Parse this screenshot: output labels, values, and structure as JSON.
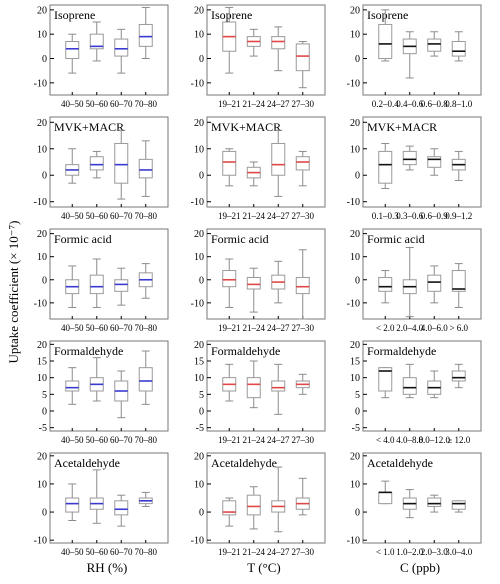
{
  "figure": {
    "ylabel": "Uptake coefficient (× 10⁻⁷)",
    "column_xlabels": [
      "RH (%)",
      "T (°C)",
      "C (ppb)"
    ],
    "column_colors": [
      "#3a3ad0",
      "#e04848",
      "#111111"
    ],
    "whisker_color": "#8c8c8c",
    "frame_color": "#777777"
  },
  "chart_data": [
    {
      "type": "box",
      "title": "Isoprene",
      "xlabel": "RH (%)",
      "ylabel": "Uptake coefficient (× 10⁻⁷)",
      "ylim": [
        -15,
        22
      ],
      "yticks": [
        -10,
        0,
        10,
        20
      ],
      "categories": [
        "40–50",
        "50–60",
        "60–70",
        "70–80"
      ],
      "boxes": [
        {
          "whislo": -6,
          "q1": 0,
          "med": 4,
          "q3": 7,
          "whishi": 10
        },
        {
          "whislo": -1,
          "q1": 4,
          "med": 5,
          "q3": 10,
          "whishi": 15
        },
        {
          "whislo": -6,
          "q1": 1,
          "med": 4,
          "q3": 8,
          "whishi": 12
        },
        {
          "whislo": 0,
          "q1": 5,
          "med": 9,
          "q3": 14,
          "whishi": 21
        }
      ]
    },
    {
      "type": "box",
      "title": "Isoprene",
      "xlabel": "T (°C)",
      "ylabel": "Uptake coefficient (× 10⁻⁷)",
      "ylim": [
        -15,
        22
      ],
      "yticks": [
        -10,
        0,
        10,
        20
      ],
      "categories": [
        "19–21",
        "21–24",
        "24–27",
        "27–30"
      ],
      "boxes": [
        {
          "whislo": -6,
          "q1": 3,
          "med": 9,
          "q3": 15,
          "whishi": 21
        },
        {
          "whislo": 1,
          "q1": 5,
          "med": 7,
          "q3": 9,
          "whishi": 12
        },
        {
          "whislo": -5,
          "q1": 4,
          "med": 7,
          "q3": 9,
          "whishi": 13
        },
        {
          "whislo": -12,
          "q1": -5,
          "med": 1,
          "q3": 6,
          "whishi": 7
        }
      ]
    },
    {
      "type": "box",
      "title": "Isoprene",
      "xlabel": "C (ppb)",
      "ylabel": "Uptake coefficient (× 10⁻⁷)",
      "ylim": [
        -15,
        22
      ],
      "yticks": [
        -10,
        0,
        10,
        20
      ],
      "categories": [
        "0.2–0.4",
        "0.4–0.6",
        "0.6–0.8",
        "0.8–1.0"
      ],
      "boxes": [
        {
          "whislo": -1,
          "q1": 0,
          "med": 6,
          "q3": 14,
          "whishi": 20
        },
        {
          "whislo": -8,
          "q1": 2,
          "med": 5,
          "q3": 8,
          "whishi": 11
        },
        {
          "whislo": 1,
          "q1": 3,
          "med": 6,
          "q3": 8,
          "whishi": 11
        },
        {
          "whislo": -1,
          "q1": 1,
          "med": 3,
          "q3": 7,
          "whishi": 11
        }
      ]
    },
    {
      "type": "box",
      "title": "MVK+MACR",
      "xlabel": "RH (%)",
      "ylabel": "Uptake coefficient (× 10⁻⁷)",
      "ylim": [
        -12,
        22
      ],
      "yticks": [
        -10,
        0,
        10,
        20
      ],
      "categories": [
        "40–50",
        "50–60",
        "60–70",
        "70–80"
      ],
      "boxes": [
        {
          "whislo": -3,
          "q1": 0,
          "med": 2,
          "q3": 4,
          "whishi": 10
        },
        {
          "whislo": -1,
          "q1": 2,
          "med": 4,
          "q3": 7,
          "whishi": 9
        },
        {
          "whislo": -9,
          "q1": -3,
          "med": 4,
          "q3": 12,
          "whishi": 17
        },
        {
          "whislo": -8,
          "q1": -1,
          "med": 2,
          "q3": 6,
          "whishi": 13
        }
      ]
    },
    {
      "type": "box",
      "title": "MVK+MACR",
      "xlabel": "T (°C)",
      "ylabel": "Uptake coefficient (× 10⁻⁷)",
      "ylim": [
        -12,
        22
      ],
      "yticks": [
        -10,
        0,
        10,
        20
      ],
      "categories": [
        "19–21",
        "21–24",
        "24–27",
        "27–30"
      ],
      "boxes": [
        {
          "whislo": -4,
          "q1": 0,
          "med": 5,
          "q3": 9,
          "whishi": 10
        },
        {
          "whislo": -4,
          "q1": -1,
          "med": 1,
          "q3": 3,
          "whishi": 5
        },
        {
          "whislo": -8,
          "q1": 0,
          "med": 4,
          "q3": 12,
          "whishi": 17
        },
        {
          "whislo": -4,
          "q1": 2,
          "med": 5,
          "q3": 7,
          "whishi": 9
        }
      ]
    },
    {
      "type": "box",
      "title": "MVK+MACR",
      "xlabel": "C (ppb)",
      "ylabel": "Uptake coefficient (× 10⁻⁷)",
      "ylim": [
        -12,
        22
      ],
      "yticks": [
        -10,
        0,
        10,
        20
      ],
      "categories": [
        "0.1–0.3",
        "0.3–0.6",
        "0.6–0.9",
        "0.9–1.2"
      ],
      "boxes": [
        {
          "whislo": -5,
          "q1": -3,
          "med": 4,
          "q3": 9,
          "whishi": 12
        },
        {
          "whislo": 2,
          "q1": 4,
          "med": 6,
          "q3": 9,
          "whishi": 11
        },
        {
          "whislo": 0,
          "q1": 3,
          "med": 6,
          "q3": 7,
          "whishi": 10
        },
        {
          "whislo": -2,
          "q1": 2,
          "med": 4,
          "q3": 6,
          "whishi": 9
        }
      ]
    },
    {
      "type": "box",
      "title": "Formic acid",
      "xlabel": "RH (%)",
      "ylabel": "Uptake coefficient (× 10⁻⁷)",
      "ylim": [
        -17,
        22
      ],
      "yticks": [
        -10,
        0,
        10,
        20
      ],
      "categories": [
        "40–50",
        "50–60",
        "60–70",
        "70–80"
      ],
      "boxes": [
        {
          "whislo": -12,
          "q1": -6,
          "med": -3,
          "q3": 0,
          "whishi": 6
        },
        {
          "whislo": -12,
          "q1": -6,
          "med": -3,
          "q3": 2,
          "whishi": 9
        },
        {
          "whislo": -11,
          "q1": -5,
          "med": -2,
          "q3": 0,
          "whishi": 5
        },
        {
          "whislo": -8,
          "q1": -3,
          "med": 0,
          "q3": 3,
          "whishi": 7
        }
      ]
    },
    {
      "type": "box",
      "title": "Formic acid",
      "xlabel": "T (°C)",
      "ylabel": "Uptake coefficient (× 10⁻⁷)",
      "ylim": [
        -17,
        22
      ],
      "yticks": [
        -10,
        0,
        10,
        20
      ],
      "categories": [
        "19–21",
        "21–24",
        "24–27",
        "27–30"
      ],
      "boxes": [
        {
          "whislo": -12,
          "q1": -3,
          "med": 0,
          "q3": 4,
          "whishi": 9
        },
        {
          "whislo": -14,
          "q1": -4,
          "med": -2,
          "q3": 1,
          "whishi": 5
        },
        {
          "whislo": -10,
          "q1": -4,
          "med": -1,
          "q3": 2,
          "whishi": 8
        },
        {
          "whislo": -17,
          "q1": -6,
          "med": -3,
          "q3": 1,
          "whishi": 13
        }
      ]
    },
    {
      "type": "box",
      "title": "Formic acid",
      "xlabel": "C (ppb)",
      "ylabel": "Uptake coefficient (× 10⁻⁷)",
      "ylim": [
        -17,
        22
      ],
      "yticks": [
        -10,
        0,
        10,
        20
      ],
      "categories": [
        "< 2.0",
        "2.0–4.0",
        "4.0–6.0",
        "> 6.0"
      ],
      "boxes": [
        {
          "whislo": -10,
          "q1": -5,
          "med": -3,
          "q3": 1,
          "whishi": 4
        },
        {
          "whislo": -16,
          "q1": -6,
          "med": -3,
          "q3": 0,
          "whishi": 14
        },
        {
          "whislo": -10,
          "q1": -5,
          "med": -1,
          "q3": 2,
          "whishi": 6
        },
        {
          "whislo": -12,
          "q1": -5,
          "med": -4,
          "q3": 4,
          "whishi": 7
        }
      ]
    },
    {
      "type": "box",
      "title": "Formaldehyde",
      "xlabel": "RH (%)",
      "ylabel": "Uptake coefficient (× 10⁻⁷)",
      "ylim": [
        -6,
        21
      ],
      "yticks": [
        -5,
        0,
        5,
        10,
        15,
        20
      ],
      "categories": [
        "40–50",
        "50–60",
        "60–70",
        "70–80"
      ],
      "boxes": [
        {
          "whislo": 2,
          "q1": 6,
          "med": 7,
          "q3": 9,
          "whishi": 13
        },
        {
          "whislo": 3,
          "q1": 6,
          "med": 8,
          "q3": 10,
          "whishi": 16
        },
        {
          "whislo": -2,
          "q1": 3,
          "med": 6,
          "q3": 9,
          "whishi": 12
        },
        {
          "whislo": 2,
          "q1": 6,
          "med": 9,
          "q3": 13,
          "whishi": 18
        }
      ]
    },
    {
      "type": "box",
      "title": "Formaldehyde",
      "xlabel": "T (°C)",
      "ylabel": "Uptake coefficient (× 10⁻⁷)",
      "ylim": [
        -6,
        21
      ],
      "yticks": [
        -5,
        0,
        5,
        10,
        15,
        20
      ],
      "categories": [
        "19–21",
        "21–24",
        "24–27",
        "27–30"
      ],
      "boxes": [
        {
          "whislo": 3,
          "q1": 6,
          "med": 8,
          "q3": 10,
          "whishi": 14
        },
        {
          "whislo": 1,
          "q1": 4,
          "med": 8,
          "q3": 10,
          "whishi": 15
        },
        {
          "whislo": -1,
          "q1": 6,
          "med": 7,
          "q3": 9,
          "whishi": 14
        },
        {
          "whislo": 5,
          "q1": 7,
          "med": 8,
          "q3": 9,
          "whishi": 11
        }
      ]
    },
    {
      "type": "box",
      "title": "Formaldehyde",
      "xlabel": "C (ppb)",
      "ylabel": "Uptake coefficient (× 10⁻⁷)",
      "ylim": [
        -6,
        21
      ],
      "yticks": [
        -5,
        0,
        5,
        10,
        15,
        20
      ],
      "categories": [
        "< 4.0",
        "4.0–8.0",
        "8.0–12.0",
        "≥ 12.0"
      ],
      "boxes": [
        {
          "whislo": 4,
          "q1": 6,
          "med": 12,
          "q3": 13,
          "whishi": 13
        },
        {
          "whislo": 4,
          "q1": 5,
          "med": 7,
          "q3": 10,
          "whishi": 14
        },
        {
          "whislo": 4,
          "q1": 5,
          "med": 7,
          "q3": 9,
          "whishi": 12
        },
        {
          "whislo": 7,
          "q1": 9,
          "med": 10,
          "q3": 12,
          "whishi": 14
        }
      ]
    },
    {
      "type": "box",
      "title": "Acetaldehyde",
      "xlabel": "RH (%)",
      "ylabel": "Uptake coefficient (× 10⁻⁷)",
      "ylim": [
        -11,
        21
      ],
      "yticks": [
        -10,
        0,
        10,
        20
      ],
      "categories": [
        "40–50",
        "50–60",
        "60–70",
        "70–80"
      ],
      "boxes": [
        {
          "whislo": -3,
          "q1": 0,
          "med": 3,
          "q3": 5,
          "whishi": 10
        },
        {
          "whislo": -4,
          "q1": 1,
          "med": 3,
          "q3": 5,
          "whishi": 15
        },
        {
          "whislo": -5,
          "q1": -1,
          "med": 1,
          "q3": 4,
          "whishi": 6
        },
        {
          "whislo": 2,
          "q1": 3,
          "med": 4,
          "q3": 5,
          "whishi": 7
        }
      ]
    },
    {
      "type": "box",
      "title": "Acetaldehyde",
      "xlabel": "T (°C)",
      "ylabel": "Uptake coefficient (× 10⁻⁷)",
      "ylim": [
        -11,
        21
      ],
      "yticks": [
        -10,
        0,
        10,
        20
      ],
      "categories": [
        "19–21",
        "21–24",
        "24–27",
        "27–30"
      ],
      "boxes": [
        {
          "whislo": -5,
          "q1": -1,
          "med": 0,
          "q3": 4,
          "whishi": 5
        },
        {
          "whislo": -6,
          "q1": -1,
          "med": 2,
          "q3": 6,
          "whishi": 9
        },
        {
          "whislo": -7,
          "q1": 0,
          "med": 2,
          "q3": 4,
          "whishi": 16
        },
        {
          "whislo": -1,
          "q1": 1,
          "med": 3,
          "q3": 5,
          "whishi": 12
        }
      ]
    },
    {
      "type": "box",
      "title": "Acetaldehyde",
      "xlabel": "C (ppb)",
      "ylabel": "Uptake coefficient (× 10⁻⁷)",
      "ylim": [
        -11,
        21
      ],
      "yticks": [
        -10,
        0,
        10,
        20
      ],
      "categories": [
        "< 1.0",
        "1.0–2.0",
        "2.0–3.0",
        "3.0–4.0"
      ],
      "boxes": [
        {
          "whislo": 3,
          "q1": 3,
          "med": 7,
          "q3": 7,
          "whishi": 11
        },
        {
          "whislo": -2,
          "q1": 1,
          "med": 3,
          "q3": 5,
          "whishi": 8
        },
        {
          "whislo": 0,
          "q1": 2,
          "med": 3,
          "q3": 5,
          "whishi": 6
        },
        {
          "whislo": 0,
          "q1": 1,
          "med": 3,
          "q3": 4,
          "whishi": 4
        }
      ]
    }
  ]
}
